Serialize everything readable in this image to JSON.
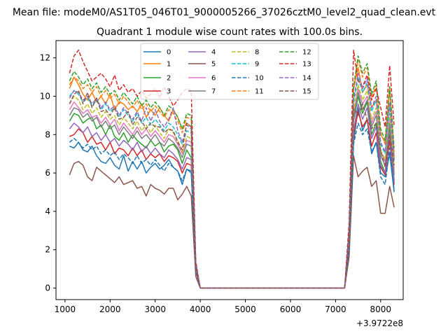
{
  "suptitle": "Mean file: modeM0/AS1T05_046T01_9000005266_37026cztM0_level2_quad_clean.evt",
  "chart_data": {
    "type": "line",
    "title": "Quadrant 1 module wise count rates with 100.0s bins.",
    "xlabel": "",
    "ylabel": "",
    "x_offset_label": "+3.9722e8",
    "xlim": [
      800,
      8500
    ],
    "ylim": [
      -0.6,
      12.9
    ],
    "xticks": [
      1000,
      2000,
      3000,
      4000,
      5000,
      6000,
      7000,
      8000
    ],
    "yticks": [
      0,
      2,
      4,
      6,
      8,
      10,
      12
    ],
    "grid": false,
    "legend_position": "top-center",
    "x": [
      1100,
      1200,
      1300,
      1400,
      1500,
      1600,
      1700,
      1800,
      1900,
      2000,
      2100,
      2200,
      2300,
      2400,
      2500,
      2600,
      2700,
      2800,
      2900,
      3000,
      3100,
      3200,
      3300,
      3400,
      3500,
      3600,
      3700,
      3800,
      3900,
      4000,
      7200,
      7300,
      7400,
      7500,
      7600,
      7700,
      7800,
      7900,
      8000,
      8100,
      8200,
      8300
    ],
    "series": [
      {
        "name": "0",
        "color": "#1f77b4",
        "dash": "solid",
        "values": [
          7.4,
          7.3,
          7.6,
          7.2,
          7.1,
          7.4,
          6.9,
          6.6,
          6.5,
          6.8,
          6.4,
          6.2,
          6.9,
          6.1,
          6.6,
          6.2,
          6.6,
          6.0,
          6.3,
          6.5,
          6.2,
          6.4,
          6.7,
          6.3,
          6.1,
          5.4,
          6.2,
          6.0,
          0.9,
          0.0,
          0.0,
          2.0,
          7.6,
          9.4,
          8.2,
          8.8,
          7.0,
          7.6,
          6.0,
          5.8,
          7.0,
          5.0
        ]
      },
      {
        "name": "1",
        "color": "#ff7f0e",
        "dash": "solid",
        "values": [
          10.4,
          11.0,
          10.6,
          10.1,
          9.8,
          10.2,
          9.7,
          10.0,
          9.6,
          10.1,
          9.3,
          9.7,
          9.6,
          9.3,
          9.5,
          9.2,
          9.6,
          8.9,
          9.3,
          9.0,
          9.4,
          9.0,
          8.7,
          9.3,
          8.9,
          8.3,
          8.6,
          8.4,
          1.2,
          0.0,
          0.0,
          2.8,
          10.4,
          11.5,
          10.2,
          10.6,
          9.4,
          9.8,
          8.0,
          7.6,
          10.5,
          6.8
        ]
      },
      {
        "name": "2",
        "color": "#2ca02c",
        "dash": "solid",
        "values": [
          8.7,
          9.1,
          9.0,
          8.6,
          8.8,
          8.9,
          8.3,
          8.5,
          8.0,
          8.5,
          7.9,
          7.7,
          8.1,
          7.6,
          8.0,
          7.7,
          7.5,
          7.3,
          7.7,
          7.4,
          7.6,
          7.1,
          7.4,
          7.5,
          7.2,
          6.5,
          7.2,
          6.8,
          1.0,
          0.0,
          0.0,
          2.4,
          8.7,
          10.0,
          9.1,
          9.7,
          8.0,
          8.6,
          6.6,
          6.0,
          8.3,
          5.6
        ]
      },
      {
        "name": "3",
        "color": "#d62728",
        "dash": "solid",
        "values": [
          7.9,
          8.0,
          8.3,
          8.1,
          7.6,
          7.9,
          7.5,
          7.6,
          7.2,
          7.6,
          7.0,
          7.3,
          7.2,
          6.9,
          7.3,
          6.9,
          7.2,
          6.7,
          7.0,
          6.8,
          7.0,
          6.6,
          6.9,
          6.8,
          6.6,
          6.0,
          6.5,
          6.4,
          0.9,
          0.0,
          0.0,
          2.2,
          8.0,
          9.2,
          8.4,
          8.8,
          7.4,
          8.1,
          6.3,
          5.9,
          7.7,
          5.4
        ]
      },
      {
        "name": "4",
        "color": "#9467bd",
        "dash": "solid",
        "values": [
          8.3,
          8.6,
          8.4,
          8.1,
          8.4,
          7.9,
          8.1,
          7.7,
          8.0,
          7.6,
          7.8,
          7.4,
          7.7,
          7.5,
          7.2,
          7.6,
          7.1,
          7.4,
          7.0,
          7.3,
          7.0,
          6.8,
          7.2,
          7.0,
          6.7,
          6.2,
          6.8,
          6.7,
          1.0,
          0.0,
          0.0,
          2.2,
          8.2,
          9.6,
          8.8,
          9.4,
          7.8,
          8.4,
          6.4,
          6.0,
          8.1,
          5.5
        ]
      },
      {
        "name": "5",
        "color": "#8c564b",
        "dash": "solid",
        "values": [
          5.9,
          6.5,
          6.6,
          6.4,
          5.8,
          5.6,
          6.3,
          6.1,
          5.9,
          5.7,
          5.5,
          5.8,
          5.4,
          5.5,
          5.6,
          5.2,
          5.3,
          4.8,
          5.4,
          5.2,
          5.1,
          4.9,
          5.2,
          5.2,
          4.6,
          4.9,
          5.3,
          4.8,
          0.6,
          0.0,
          0.0,
          1.6,
          6.9,
          5.8,
          6.1,
          6.3,
          5.3,
          5.6,
          3.9,
          3.9,
          5.3,
          4.2
        ]
      },
      {
        "name": "6",
        "color": "#e377c2",
        "dash": "solid",
        "values": [
          9.3,
          9.7,
          9.4,
          9.1,
          9.3,
          8.9,
          9.0,
          8.6,
          8.9,
          8.5,
          8.8,
          8.2,
          8.6,
          8.3,
          8.0,
          8.4,
          8.0,
          8.3,
          7.9,
          8.2,
          7.9,
          7.6,
          8.0,
          7.9,
          7.5,
          7.0,
          7.7,
          7.6,
          1.1,
          0.0,
          0.0,
          2.6,
          9.0,
          10.4,
          9.6,
          10.0,
          8.6,
          9.2,
          7.1,
          6.6,
          8.8,
          6.1
        ]
      },
      {
        "name": "7",
        "color": "#7f7f7f",
        "dash": "solid",
        "values": [
          9.0,
          9.4,
          9.3,
          8.9,
          9.1,
          8.7,
          8.9,
          8.4,
          8.7,
          8.3,
          8.5,
          8.0,
          8.4,
          8.1,
          7.8,
          8.2,
          7.8,
          8.0,
          7.7,
          8.0,
          7.6,
          7.4,
          7.8,
          7.6,
          7.3,
          6.8,
          7.5,
          7.4,
          1.1,
          0.0,
          0.0,
          2.5,
          8.8,
          10.2,
          9.3,
          9.8,
          8.4,
          9.0,
          6.9,
          6.4,
          8.6,
          5.9
        ]
      },
      {
        "name": "8",
        "color": "#bcbd22",
        "dash": "dashed",
        "values": [
          9.6,
          10.0,
          9.8,
          9.3,
          9.6,
          9.1,
          9.4,
          8.9,
          9.2,
          8.8,
          9.0,
          8.5,
          8.9,
          8.6,
          8.3,
          8.7,
          8.2,
          8.5,
          8.1,
          8.5,
          8.1,
          7.8,
          8.3,
          8.1,
          7.7,
          7.1,
          7.9,
          7.8,
          1.1,
          0.0,
          0.0,
          2.6,
          9.2,
          10.6,
          9.8,
          10.3,
          8.8,
          9.4,
          7.2,
          6.7,
          9.1,
          6.3
        ]
      },
      {
        "name": "9",
        "color": "#17becf",
        "dash": "dashed",
        "values": [
          10.0,
          10.3,
          10.1,
          9.7,
          9.9,
          9.5,
          9.8,
          9.3,
          9.6,
          9.2,
          9.4,
          8.9,
          9.3,
          9.0,
          8.7,
          9.1,
          8.6,
          8.9,
          8.5,
          8.8,
          8.5,
          8.2,
          8.6,
          8.4,
          8.0,
          7.5,
          8.2,
          8.1,
          1.2,
          0.0,
          0.0,
          2.7,
          9.6,
          11.0,
          10.2,
          10.7,
          9.2,
          9.8,
          7.5,
          7.0,
          9.5,
          6.6
        ]
      },
      {
        "name": "10",
        "color": "#1f77b4",
        "dash": "dashed",
        "values": [
          7.6,
          7.8,
          7.6,
          7.3,
          7.5,
          7.2,
          7.4,
          7.0,
          7.2,
          6.9,
          7.1,
          6.7,
          7.0,
          6.8,
          6.5,
          6.9,
          6.5,
          6.7,
          6.4,
          6.7,
          6.4,
          6.1,
          6.5,
          6.3,
          6.1,
          5.6,
          6.2,
          6.1,
          0.9,
          0.0,
          0.0,
          2.1,
          7.5,
          8.6,
          8.0,
          8.3,
          7.1,
          7.6,
          5.8,
          5.4,
          7.3,
          5.1
        ]
      },
      {
        "name": "11",
        "color": "#ff7f0e",
        "dash": "dashed",
        "values": [
          10.6,
          11.0,
          10.8,
          10.4,
          10.6,
          10.2,
          10.5,
          10.0,
          10.3,
          9.9,
          10.1,
          9.6,
          10.0,
          9.7,
          9.4,
          9.8,
          9.3,
          9.6,
          9.2,
          9.5,
          9.2,
          8.9,
          9.3,
          9.1,
          8.7,
          8.1,
          8.9,
          8.8,
          1.3,
          0.0,
          0.0,
          2.9,
          10.3,
          11.9,
          11.0,
          11.5,
          9.9,
          10.6,
          8.1,
          7.5,
          10.3,
          7.1
        ]
      },
      {
        "name": "12",
        "color": "#2ca02c",
        "dash": "dashed",
        "values": [
          10.8,
          11.3,
          11.0,
          10.6,
          10.9,
          10.4,
          10.7,
          10.2,
          10.5,
          10.1,
          10.3,
          9.8,
          10.2,
          9.9,
          9.6,
          10.0,
          9.5,
          9.8,
          9.4,
          9.7,
          9.4,
          9.0,
          9.5,
          9.3,
          8.9,
          8.3,
          9.1,
          9.0,
          1.3,
          0.0,
          0.0,
          3.0,
          10.5,
          12.1,
          11.2,
          11.7,
          10.1,
          10.8,
          8.3,
          7.7,
          10.5,
          7.3
        ]
      },
      {
        "name": "13",
        "color": "#d62728",
        "dash": "dashed",
        "values": [
          11.2,
          12.1,
          12.4,
          11.8,
          11.3,
          10.8,
          11.0,
          11.2,
          10.9,
          10.5,
          11.1,
          10.3,
          10.6,
          10.2,
          10.4,
          10.0,
          10.3,
          9.9,
          10.1,
          10.4,
          9.9,
          10.5,
          10.0,
          9.5,
          9.8,
          10.2,
          10.4,
          10.3,
          1.4,
          0.0,
          0.0,
          3.4,
          12.4,
          10.8,
          10.5,
          11.1,
          9.8,
          10.4,
          9.4,
          8.4,
          11.6,
          8.4
        ]
      },
      {
        "name": "14",
        "color": "#9467bd",
        "dash": "dashed",
        "values": [
          9.9,
          10.3,
          10.2,
          9.8,
          10.0,
          9.6,
          9.9,
          9.4,
          9.7,
          9.3,
          9.5,
          9.0,
          9.4,
          9.1,
          8.8,
          9.2,
          8.7,
          9.4,
          8.7,
          9.3,
          8.7,
          8.4,
          8.8,
          9.4,
          8.2,
          7.6,
          8.5,
          8.3,
          1.2,
          0.0,
          0.0,
          2.8,
          9.8,
          11.2,
          10.4,
          10.9,
          9.4,
          10.0,
          7.6,
          7.1,
          9.7,
          6.7
        ]
      },
      {
        "name": "15",
        "color": "#8c564b",
        "dash": "dashed",
        "values": [
          9.6,
          10.1,
          10.3,
          9.6,
          10.2,
          9.4,
          9.9,
          9.2,
          9.3,
          9.0,
          9.4,
          8.8,
          8.9,
          9.2,
          8.5,
          8.9,
          8.7,
          8.3,
          8.6,
          8.4,
          8.4,
          8.1,
          8.3,
          8.2,
          7.6,
          7.2,
          8.6,
          8.4,
          1.1,
          0.0,
          0.0,
          2.6,
          9.4,
          9.0,
          9.6,
          8.8,
          8.3,
          8.6,
          7.2,
          6.3,
          8.0,
          6.4
        ]
      }
    ]
  }
}
